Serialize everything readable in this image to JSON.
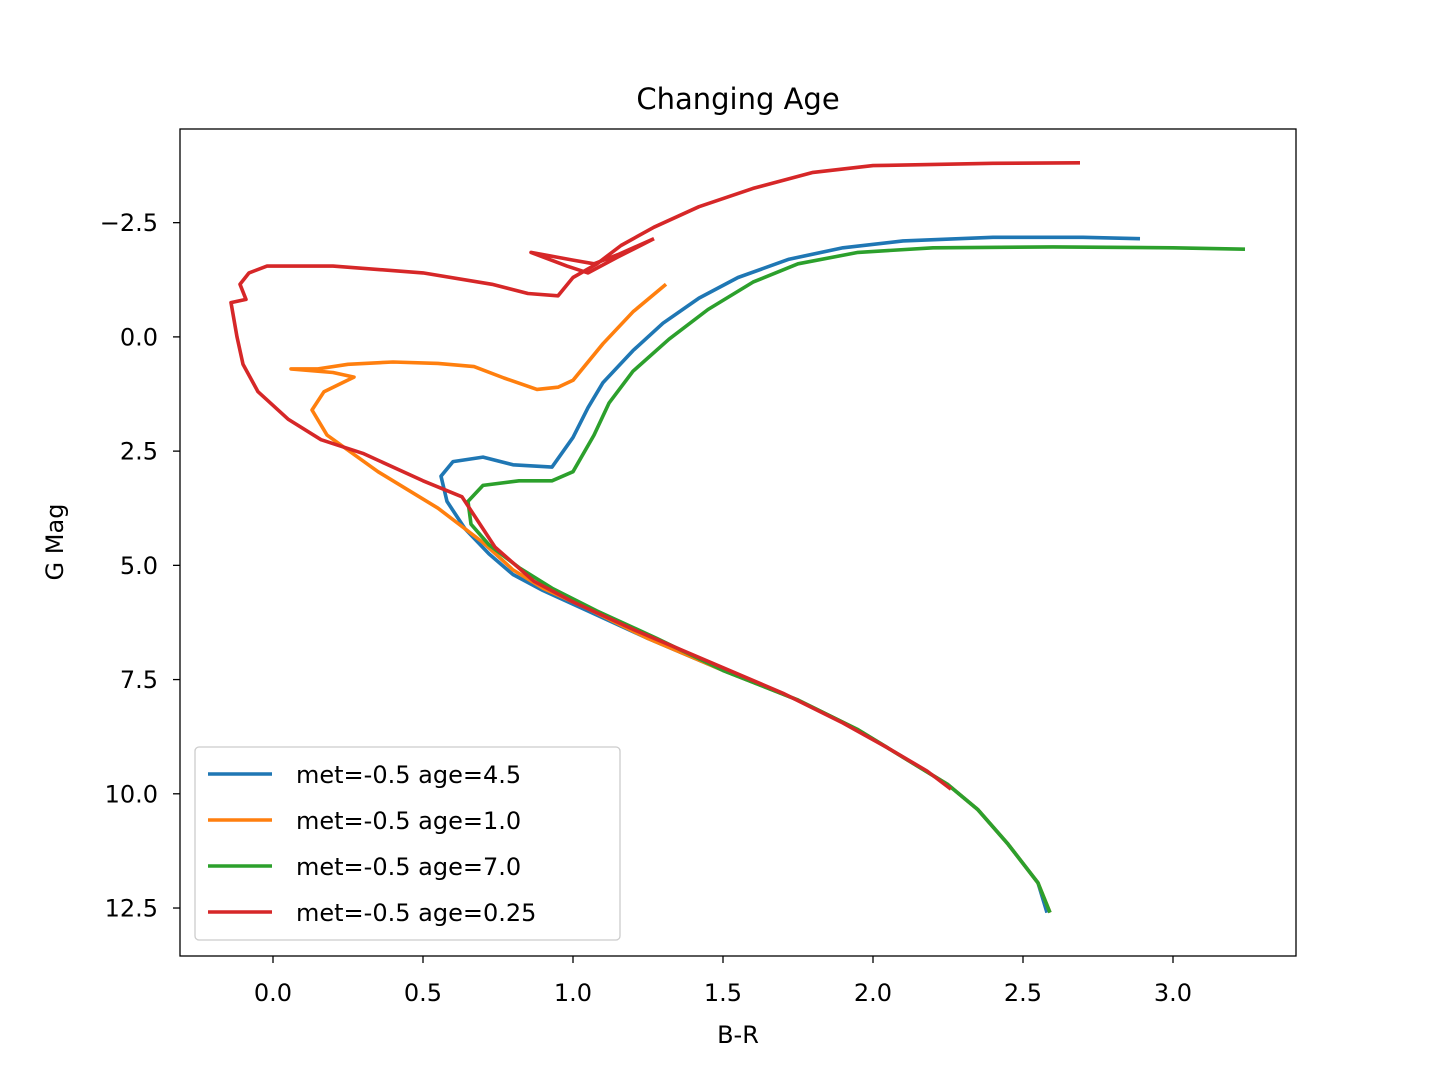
{
  "chart_data": {
    "type": "line",
    "title": "Changing Age",
    "xlabel": "B-R",
    "ylabel": "G Mag",
    "xlim": [
      -0.31,
      3.41
    ],
    "ylim": [
      13.55,
      -4.55
    ],
    "y_inverted": true,
    "xticks": [
      0.0,
      0.5,
      1.0,
      1.5,
      2.0,
      2.5,
      3.0
    ],
    "xtick_labels": [
      "0.0",
      "0.5",
      "1.0",
      "1.5",
      "2.0",
      "2.5",
      "3.0"
    ],
    "yticks": [
      -2.5,
      0.0,
      2.5,
      5.0,
      7.5,
      10.0,
      12.5
    ],
    "ytick_labels": [
      "−2.5",
      "0.0",
      "2.5",
      "5.0",
      "7.5",
      "10.0",
      "12.5"
    ],
    "grid": false,
    "legend": "lower-left",
    "series": [
      {
        "name": "met=-0.5 age=4.5",
        "color": "#1f77b4",
        "points": [
          [
            2.89,
            -2.15
          ],
          [
            2.7,
            -2.18
          ],
          [
            2.4,
            -2.18
          ],
          [
            2.1,
            -2.1
          ],
          [
            1.9,
            -1.95
          ],
          [
            1.72,
            -1.7
          ],
          [
            1.55,
            -1.3
          ],
          [
            1.42,
            -0.85
          ],
          [
            1.3,
            -0.3
          ],
          [
            1.2,
            0.3
          ],
          [
            1.1,
            1.0
          ],
          [
            1.05,
            1.55
          ],
          [
            1.0,
            2.2
          ],
          [
            0.93,
            2.85
          ],
          [
            0.8,
            2.8
          ],
          [
            0.7,
            2.63
          ],
          [
            0.6,
            2.73
          ],
          [
            0.56,
            3.05
          ],
          [
            0.58,
            3.6
          ],
          [
            0.64,
            4.2
          ],
          [
            0.72,
            4.75
          ],
          [
            0.8,
            5.2
          ],
          [
            0.9,
            5.55
          ],
          [
            1.05,
            6.0
          ],
          [
            1.25,
            6.6
          ],
          [
            1.5,
            7.3
          ],
          [
            1.75,
            7.95
          ],
          [
            1.95,
            8.6
          ],
          [
            2.1,
            9.2
          ],
          [
            2.25,
            9.8
          ],
          [
            2.35,
            10.35
          ],
          [
            2.45,
            11.1
          ],
          [
            2.55,
            11.95
          ],
          [
            2.58,
            12.6
          ]
        ]
      },
      {
        "name": "met=-0.5 age=1.0",
        "color": "#ff7f0e",
        "points": [
          [
            1.31,
            -1.15
          ],
          [
            1.2,
            -0.55
          ],
          [
            1.1,
            0.15
          ],
          [
            1.0,
            0.95
          ],
          [
            0.95,
            1.1
          ],
          [
            0.88,
            1.15
          ],
          [
            0.77,
            0.9
          ],
          [
            0.67,
            0.65
          ],
          [
            0.55,
            0.58
          ],
          [
            0.4,
            0.55
          ],
          [
            0.25,
            0.6
          ],
          [
            0.15,
            0.7
          ],
          [
            0.06,
            0.7
          ],
          [
            0.2,
            0.78
          ],
          [
            0.27,
            0.88
          ],
          [
            0.17,
            1.2
          ],
          [
            0.13,
            1.6
          ],
          [
            0.18,
            2.15
          ],
          [
            0.35,
            2.95
          ],
          [
            0.55,
            3.75
          ],
          [
            0.7,
            4.5
          ],
          [
            0.8,
            5.1
          ],
          [
            0.9,
            5.5
          ],
          [
            1.05,
            5.95
          ],
          [
            1.25,
            6.6
          ],
          [
            1.5,
            7.3
          ],
          [
            1.75,
            7.95
          ],
          [
            1.95,
            8.6
          ],
          [
            2.1,
            9.2
          ],
          [
            2.25,
            9.8
          ],
          [
            2.35,
            10.35
          ],
          [
            2.45,
            11.1
          ],
          [
            2.55,
            11.95
          ],
          [
            2.59,
            12.6
          ]
        ]
      },
      {
        "name": "met=-0.5 age=7.0",
        "color": "#2ca02c",
        "points": [
          [
            3.24,
            -1.92
          ],
          [
            3.0,
            -1.95
          ],
          [
            2.6,
            -1.97
          ],
          [
            2.2,
            -1.95
          ],
          [
            1.95,
            -1.85
          ],
          [
            1.75,
            -1.6
          ],
          [
            1.6,
            -1.2
          ],
          [
            1.45,
            -0.6
          ],
          [
            1.32,
            0.05
          ],
          [
            1.2,
            0.75
          ],
          [
            1.12,
            1.45
          ],
          [
            1.07,
            2.15
          ],
          [
            1.0,
            2.95
          ],
          [
            0.93,
            3.15
          ],
          [
            0.82,
            3.15
          ],
          [
            0.7,
            3.25
          ],
          [
            0.65,
            3.6
          ],
          [
            0.66,
            4.1
          ],
          [
            0.72,
            4.55
          ],
          [
            0.82,
            5.05
          ],
          [
            0.93,
            5.5
          ],
          [
            1.08,
            6.0
          ],
          [
            1.28,
            6.6
          ],
          [
            1.5,
            7.3
          ],
          [
            1.75,
            7.95
          ],
          [
            1.95,
            8.6
          ],
          [
            2.1,
            9.2
          ],
          [
            2.25,
            9.8
          ],
          [
            2.35,
            10.35
          ],
          [
            2.45,
            11.1
          ],
          [
            2.55,
            11.95
          ],
          [
            2.59,
            12.6
          ]
        ]
      },
      {
        "name": "met=-0.5 age=0.25",
        "color": "#d62728",
        "points": [
          [
            2.69,
            -3.81
          ],
          [
            2.4,
            -3.8
          ],
          [
            2.0,
            -3.75
          ],
          [
            1.8,
            -3.6
          ],
          [
            1.6,
            -3.25
          ],
          [
            1.42,
            -2.85
          ],
          [
            1.27,
            -2.4
          ],
          [
            1.16,
            -2.0
          ],
          [
            1.08,
            -1.6
          ],
          [
            1.0,
            -1.3
          ],
          [
            0.95,
            -0.9
          ],
          [
            0.85,
            -0.95
          ],
          [
            0.73,
            -1.15
          ],
          [
            0.5,
            -1.4
          ],
          [
            0.2,
            -1.55
          ],
          [
            -0.02,
            -1.55
          ],
          [
            -0.08,
            -1.4
          ],
          [
            -0.11,
            -1.15
          ],
          [
            -0.09,
            -0.82
          ],
          [
            -0.14,
            -0.75
          ],
          [
            -0.12,
            0.0
          ],
          [
            -0.1,
            0.6
          ],
          [
            -0.05,
            1.2
          ],
          [
            0.05,
            1.8
          ],
          [
            0.16,
            2.25
          ],
          [
            0.3,
            2.55
          ],
          [
            0.5,
            3.15
          ],
          [
            0.63,
            3.5
          ],
          [
            0.74,
            4.6
          ],
          [
            0.87,
            5.35
          ],
          [
            1.0,
            5.8
          ],
          [
            1.2,
            6.4
          ],
          [
            1.45,
            7.1
          ],
          [
            1.7,
            7.8
          ],
          [
            1.9,
            8.45
          ],
          [
            2.05,
            9.0
          ],
          [
            2.18,
            9.5
          ],
          [
            2.26,
            9.9
          ]
        ]
      },
      {
        "name": "",
        "color": "#d62728",
        "points": [
          [
            1.27,
            -2.15
          ],
          [
            1.15,
            -1.75
          ],
          [
            1.05,
            -1.4
          ],
          [
            0.98,
            -1.55
          ],
          [
            0.86,
            -1.85
          ],
          [
            1.0,
            -1.68
          ],
          [
            1.07,
            -1.6
          ],
          [
            1.15,
            -1.8
          ],
          [
            1.27,
            -2.15
          ]
        ]
      }
    ]
  }
}
